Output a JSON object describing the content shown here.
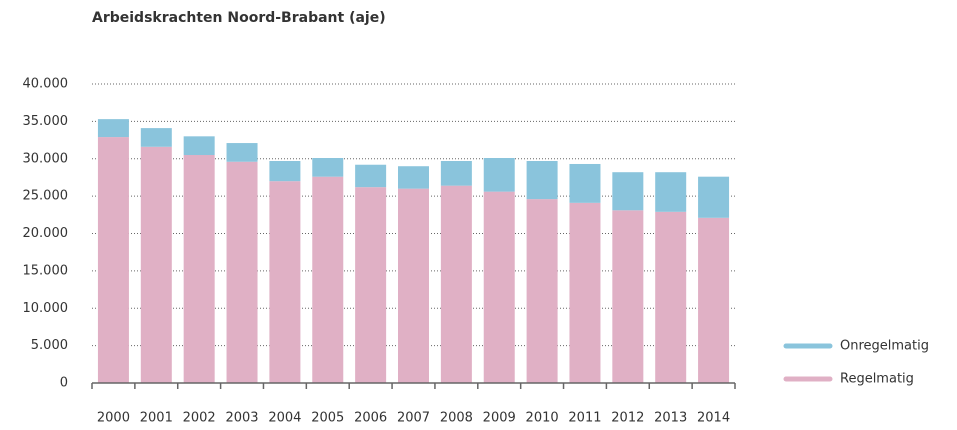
{
  "chart_data": {
    "type": "stacked-bar",
    "title": "Arbeidskrachten Noord-Brabant (aje)",
    "categories": [
      "2000",
      "2001",
      "2002",
      "2003",
      "2004",
      "2005",
      "2006",
      "2007",
      "2008",
      "2009",
      "2010",
      "2011",
      "2012",
      "2013",
      "2014"
    ],
    "series": [
      {
        "name": "Regelmatig",
        "color": "#e0b0c5",
        "values": [
          32900,
          31600,
          30500,
          29600,
          27000,
          27600,
          26200,
          26000,
          26400,
          25600,
          24600,
          24100,
          23100,
          22900,
          22100
        ]
      },
      {
        "name": "Onregelmatig",
        "color": "#8ac4dc",
        "values": [
          2400,
          2500,
          2500,
          2500,
          2700,
          2500,
          3000,
          3000,
          3300,
          4500,
          5100,
          5200,
          5100,
          5300,
          5500
        ]
      }
    ],
    "ylim": [
      0,
      40000
    ],
    "yticks": [
      0,
      {
        "value": 5000,
        "label": "5.000"
      },
      {
        "value": 10000,
        "label": "10.000"
      },
      {
        "value": 15000,
        "label": "15.000"
      },
      {
        "value": 20000,
        "label": "20.000"
      },
      {
        "value": 25000,
        "label": "25.000"
      },
      {
        "value": 30000,
        "label": "30.000"
      },
      {
        "value": 35000,
        "label": "35.000"
      },
      {
        "value": 40000,
        "label": "40.000"
      }
    ],
    "grid": true,
    "legend": "right"
  }
}
